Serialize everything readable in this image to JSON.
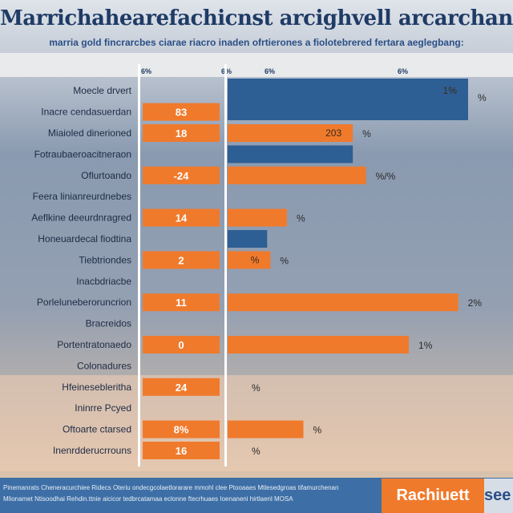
{
  "chart_data": {
    "type": "bar",
    "title": "Marrichahearefachicnst arcighvell arcarchanretha claiea",
    "subtitle": "marria gold fincrarcbes ciarae riacro inaden ofrtierones a fiolotebrered fertara aeglegbang:",
    "header_ticks": [
      "6%",
      "6%",
      "6%",
      "6%"
    ],
    "row_labels": [
      "Moecle drvert",
      "Inacre cendasuerdan",
      "Miaioled dinerioned",
      "Fotraubaeroacitneraon",
      "Oflurtoando",
      "Feera linianreurdnebes",
      "Aeflkine deeurdnragred",
      "Honeuardecal fiodtina",
      "Tiebtriondes",
      "Inacbdriacbe",
      "Porleluneberoruncrion",
      "Bracreidos",
      "Portentratonaedo",
      "Colonadures",
      "Hfeinesebleritha",
      "Ininrre Pcyed",
      "Oftoarte ctarsed",
      "Inenrdderucrrouns"
    ],
    "left_values": [
      "",
      "83",
      "18",
      "",
      "-24",
      "",
      "14",
      "",
      "2",
      "",
      "11",
      "",
      "0",
      "",
      "24",
      "",
      "8%",
      "16"
    ],
    "right_values": [
      73,
      0,
      38,
      38,
      42,
      0,
      18,
      12,
      13,
      0,
      70,
      0,
      55,
      0,
      0,
      0,
      23,
      0
    ],
    "bar_labels": [
      "1%",
      "",
      "203",
      "",
      "",
      "",
      "",
      "",
      "%",
      "",
      "",
      "",
      "",
      "",
      "",
      "",
      "",
      ""
    ],
    "pct_labels": [
      "%",
      "",
      "%",
      "",
      "%/%",
      "",
      "%",
      "",
      "%",
      "",
      "2%",
      "",
      "1%",
      "",
      "%",
      "",
      "%",
      "%"
    ],
    "series": [
      {
        "name": "series-a",
        "color": "#2e5f94"
      },
      {
        "name": "series-b",
        "color": "#f07a2c"
      }
    ],
    "colors": {
      "blue": "#2e5f94",
      "orange": "#f07a2c"
    },
    "xlim": [
      0,
      73
    ]
  },
  "footer": {
    "line1": "Pinemanrats Cheneracurchiee Ridecs Oteriu ondecgcolaetlorarare mmohl clee Ptooaaes Mtlesedgroas tifamurchenan",
    "line2": "Mlionamet Ntisoodhai Rehdin.ttnie aicicor tedbrcatamaa eclonne ftecrhuaes Ioenaneni hirtlaenl MOSA",
    "badge": "Rachiuett",
    "badge2": "see"
  }
}
